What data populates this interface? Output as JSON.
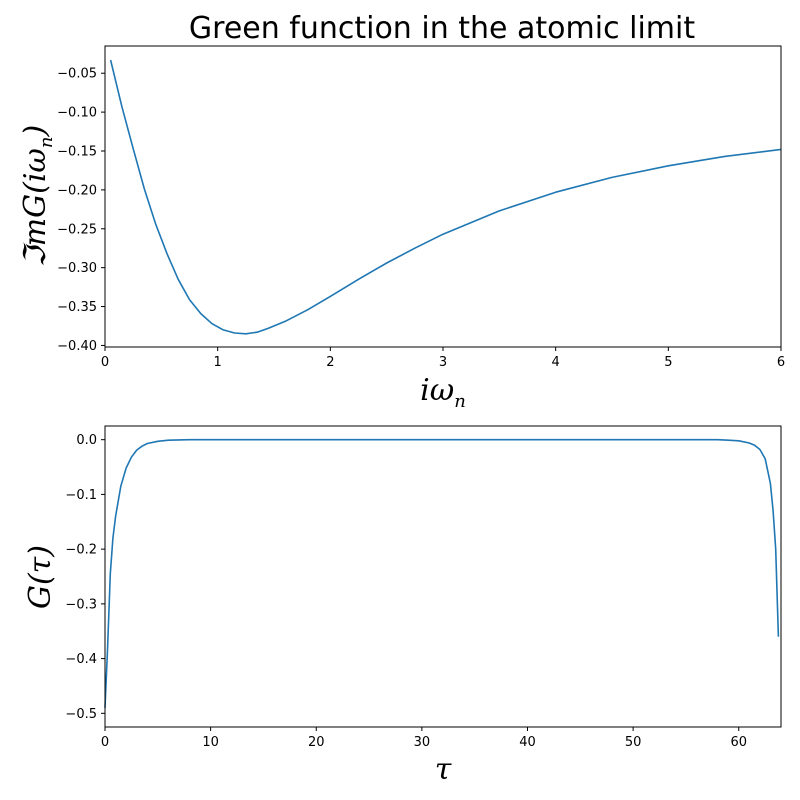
{
  "chart_data": [
    {
      "type": "line",
      "title": "Green function in the atomic limit",
      "xlabel": "iω_n",
      "ylabel": "ℑmG(iω_n)",
      "xlim": [
        0,
        6
      ],
      "ylim": [
        -0.402,
        -0.015
      ],
      "xticks": [
        0,
        1,
        2,
        3,
        4,
        5,
        6
      ],
      "yticks": [
        -0.4,
        -0.35,
        -0.3,
        -0.25,
        -0.2,
        -0.15,
        -0.1,
        -0.05
      ],
      "xtick_labels": [
        "0",
        "1",
        "2",
        "3",
        "4",
        "5",
        "6"
      ],
      "ytick_labels": [
        "−0.40",
        "−0.35",
        "−0.30",
        "−0.25",
        "−0.20",
        "−0.15",
        "−0.10",
        "−0.05"
      ],
      "series": [
        {
          "color": "#1f77b4",
          "x": [
            0.05,
            0.15,
            0.25,
            0.35,
            0.45,
            0.55,
            0.65,
            0.75,
            0.85,
            0.95,
            1.05,
            1.15,
            1.25,
            1.35,
            1.45,
            1.6,
            1.8,
            2.0,
            2.25,
            2.5,
            2.75,
            3.0,
            3.5,
            4.0,
            4.5,
            5.0,
            5.5,
            6.0
          ],
          "y": [
            -0.033,
            -0.093,
            -0.147,
            -0.199,
            -0.244,
            -0.282,
            -0.315,
            -0.341,
            -0.359,
            -0.372,
            -0.38,
            -0.384,
            -0.385,
            -0.383,
            -0.378,
            -0.369,
            -0.354,
            -0.337,
            -0.315,
            -0.294,
            -0.275,
            -0.257,
            -0.227,
            -0.203,
            -0.184,
            -0.169,
            -0.157,
            -0.148
          ]
        }
      ],
      "grid": false
    },
    {
      "type": "line",
      "xlabel": "τ",
      "ylabel": "G(τ)",
      "xlim": [
        0,
        64
      ],
      "ylim": [
        -0.525,
        0.025
      ],
      "xticks": [
        0,
        10,
        20,
        30,
        40,
        50,
        60
      ],
      "yticks": [
        -0.5,
        -0.4,
        -0.3,
        -0.2,
        -0.1,
        0.0
      ],
      "xtick_labels": [
        "0",
        "10",
        "20",
        "30",
        "40",
        "50",
        "60"
      ],
      "ytick_labels": [
        "−0.5",
        "−0.4",
        "−0.3",
        "−0.2",
        "−0.1",
        "0.0"
      ],
      "series": [
        {
          "color": "#1f77b4",
          "x": [
            0.0,
            0.25,
            0.5,
            0.75,
            1.0,
            1.5,
            2.0,
            2.5,
            3.0,
            3.5,
            4.0,
            5.0,
            6.0,
            8.0,
            10.0,
            20.0,
            30.0,
            40.0,
            50.0,
            56.0,
            58.0,
            59.0,
            60.0,
            61.0,
            61.5,
            62.0,
            62.5,
            63.0,
            63.25,
            63.5,
            63.75
          ],
          "y": [
            -0.49,
            -0.38,
            -0.245,
            -0.18,
            -0.14,
            -0.085,
            -0.052,
            -0.032,
            -0.019,
            -0.012,
            -0.007,
            -0.003,
            -0.001,
            0.0,
            0.0,
            0.0,
            0.0,
            0.0,
            0.0,
            0.0,
            0.0,
            -0.001,
            -0.002,
            -0.006,
            -0.01,
            -0.018,
            -0.035,
            -0.08,
            -0.13,
            -0.2,
            -0.36
          ]
        }
      ],
      "grid": false
    }
  ]
}
